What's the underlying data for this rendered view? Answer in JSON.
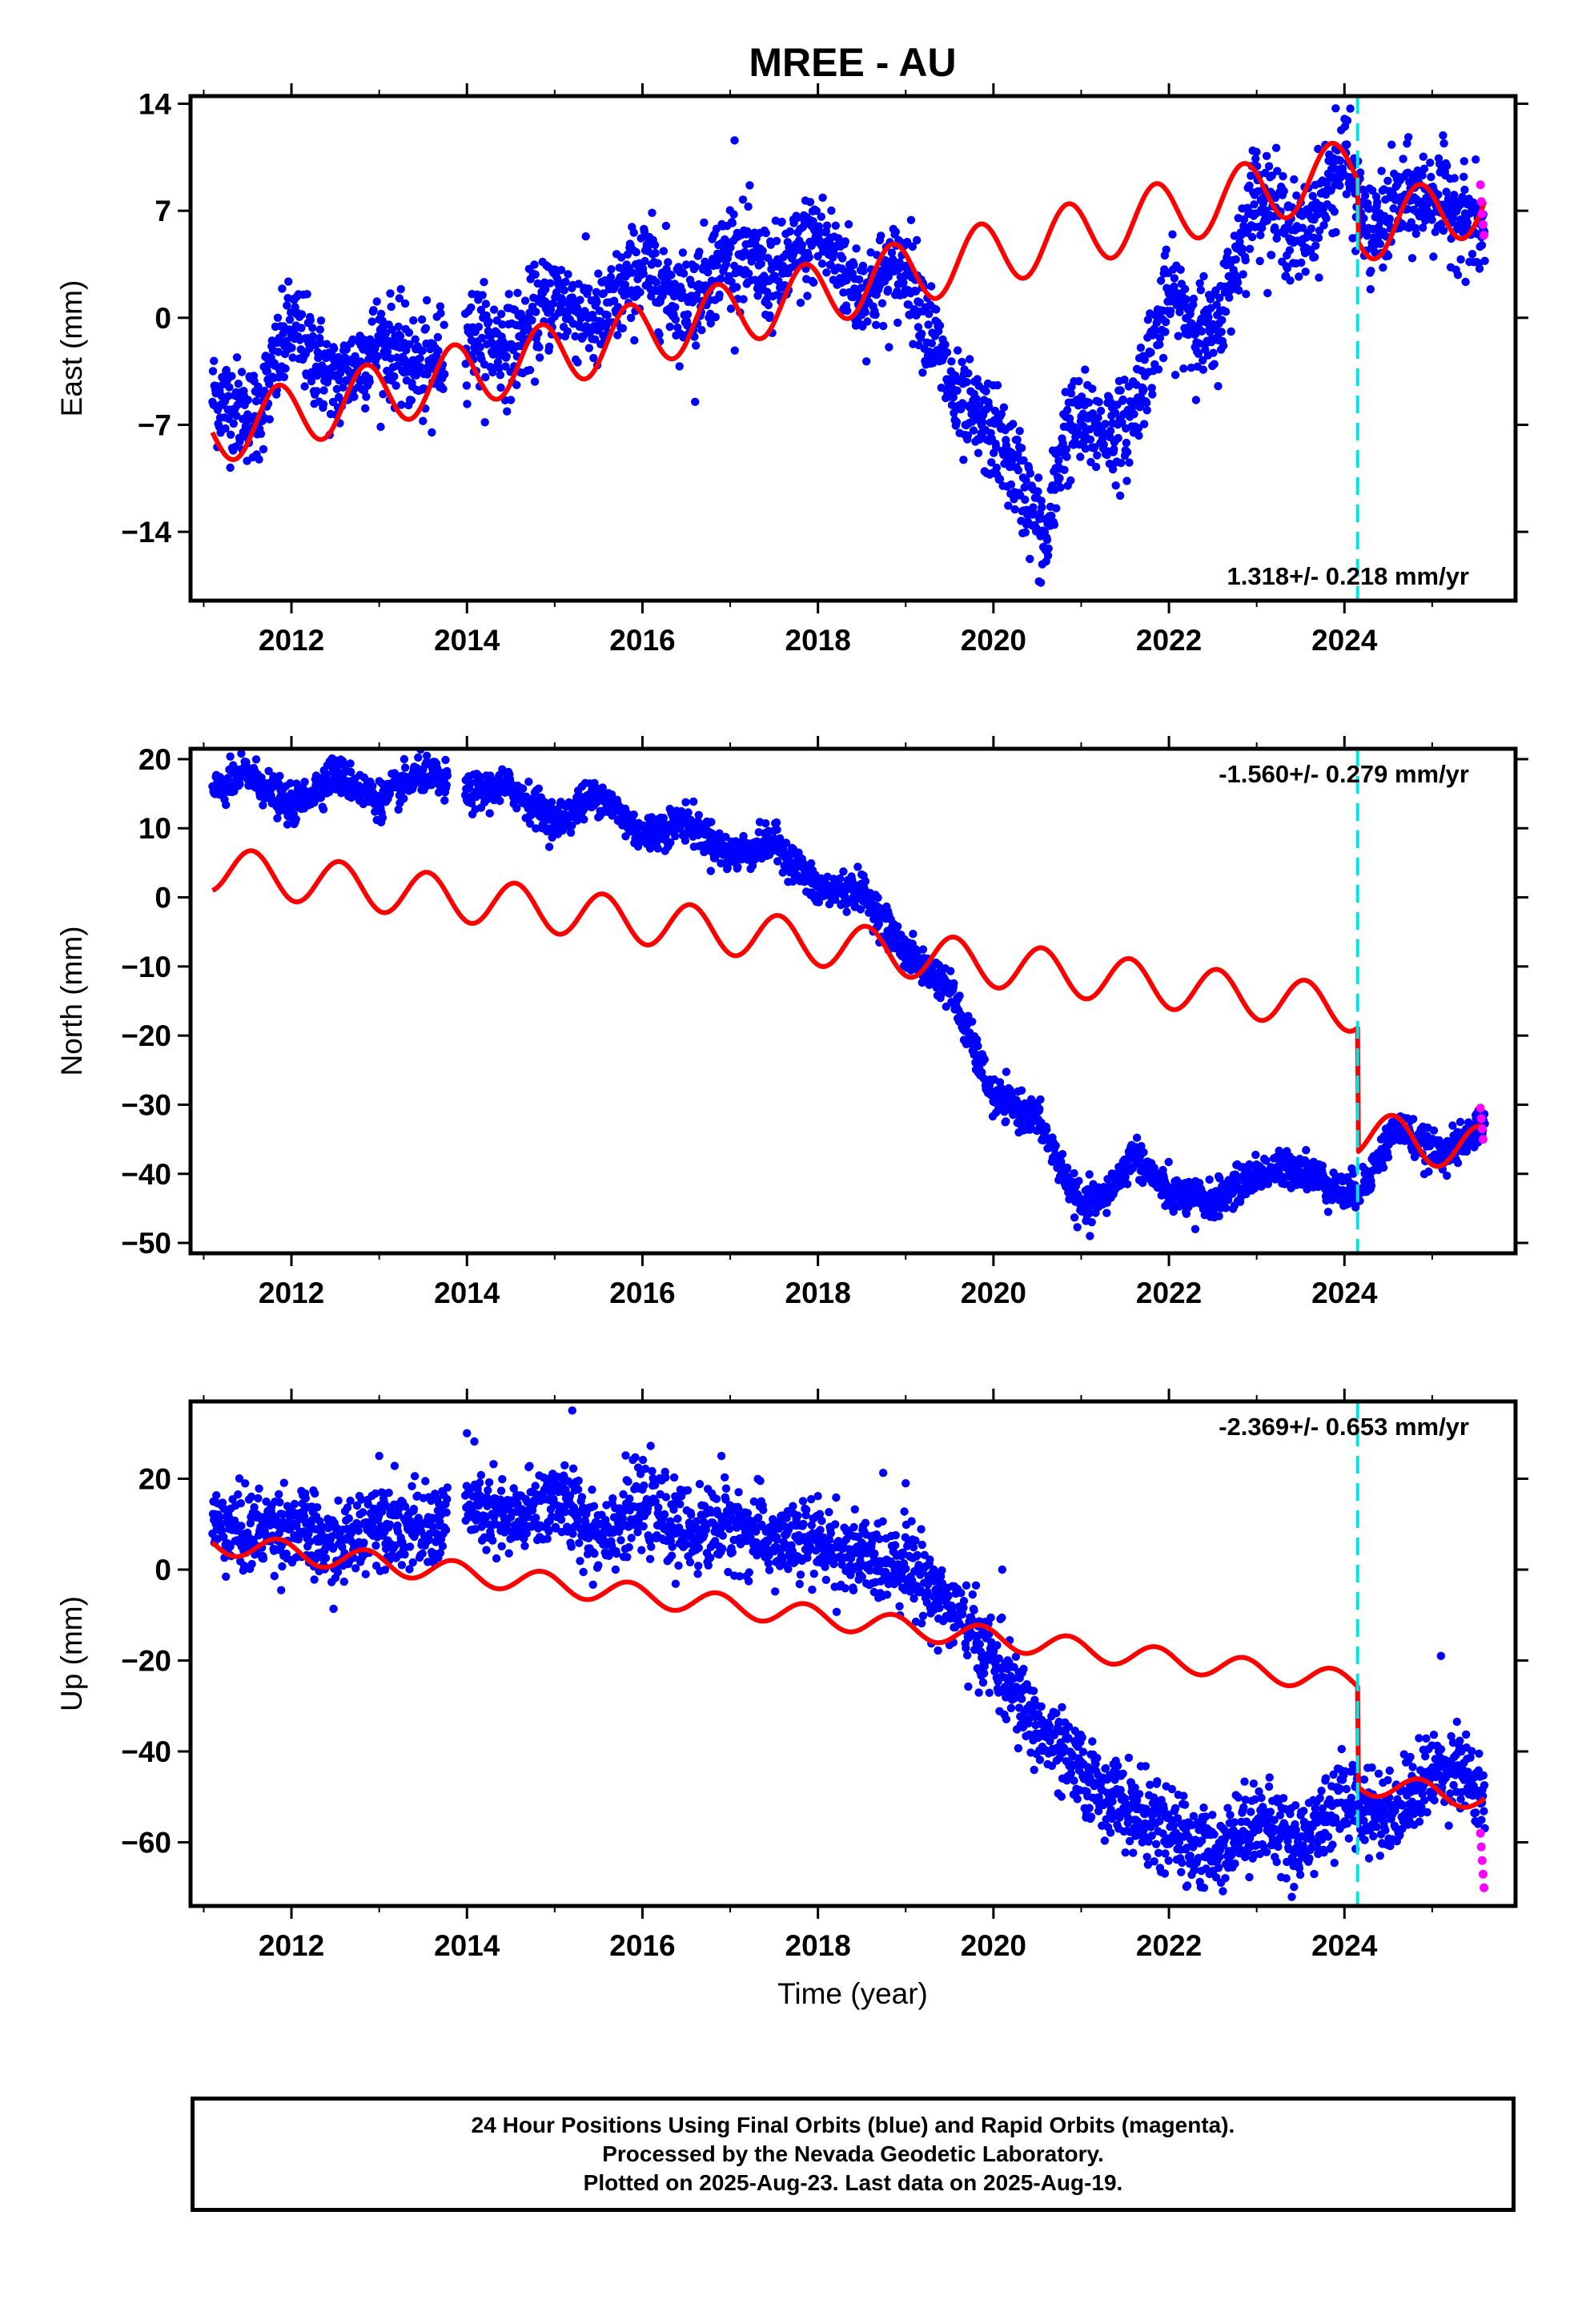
{
  "title": "MREE - AU",
  "xlabel": "Time (year)",
  "caption": [
    "24 Hour Positions Using Final Orbits (blue) and Rapid Orbits (magenta).",
    "Processed by the Nevada Geodetic Laboratory.",
    "Plotted on 2025-Aug-23. Last data on 2025-Aug-19."
  ],
  "colors": {
    "final_orbits": "#0000ff",
    "rapid_orbits": "#ff00ff",
    "model": "#ff0000",
    "event": "#00e5e5"
  },
  "chart_data": [
    {
      "type": "scatter",
      "ylabel": "East (mm)",
      "xlim": [
        2010.85,
        2025.95
      ],
      "ylim": [
        -18.5,
        14.5
      ],
      "xticks": [
        "2012",
        "2014",
        "2016",
        "2018",
        "2020",
        "2022",
        "2024"
      ],
      "yticks": [
        "14",
        "7",
        "0",
        "-7",
        "-14"
      ],
      "rate_label": "1.318+/- 0.218 mm/yr",
      "rate_position": "bottom-right",
      "event_line_x": 2024.15,
      "final_trend_x": [
        2011.1,
        2011.6,
        2012.0,
        2012.5,
        2013.0,
        2013.5,
        2014.0,
        2014.5,
        2015.0,
        2015.5,
        2016.0,
        2016.5,
        2017.0,
        2017.5,
        2018.0,
        2018.5,
        2019.0,
        2019.3,
        2019.6,
        2020.0,
        2020.3,
        2020.6,
        2020.8,
        2021.0,
        2021.5,
        2022.0,
        2022.5,
        2023.0,
        2023.5,
        2024.0,
        2024.3,
        2024.6,
        2025.0,
        2025.3,
        2025.6
      ],
      "final_trend_y": [
        -5.0,
        -6.5,
        -0.5,
        -4.5,
        -1.5,
        -3.5,
        -1.0,
        -2.0,
        1.5,
        -0.5,
        3.5,
        1.0,
        4.5,
        2.5,
        5.5,
        1.5,
        3.5,
        -1.0,
        -6.0,
        -7.5,
        -10.5,
        -15.0,
        -7.5,
        -7.0,
        -7.5,
        1.5,
        -1.5,
        8.5,
        5.0,
        10.5,
        5.0,
        7.5,
        8.0,
        7.0,
        5.0
      ],
      "final_scatter": 1.6,
      "final_outliers": [
        {
          "x": 2017.05,
          "y": 11.6
        },
        {
          "x": 2023.9,
          "y": 13.7
        },
        {
          "x": 2013.6,
          "y": -7.5
        },
        {
          "x": 2016.6,
          "y": -5.5
        }
      ],
      "rapid": [
        {
          "x": 2025.55,
          "y": 8.7
        },
        {
          "x": 2025.56,
          "y": 7.6
        },
        {
          "x": 2025.57,
          "y": 6.8
        },
        {
          "x": 2025.58,
          "y": 6.1
        },
        {
          "x": 2025.59,
          "y": 5.4
        }
      ],
      "model": {
        "intercept_year": 2011.1,
        "intercept": -7.5,
        "rate": 1.318,
        "amplitude": 2.1,
        "phase_year": 2011.85,
        "jump_year": 2024.15,
        "jump": -4.0
      }
    },
    {
      "type": "scatter",
      "ylabel": "North (mm)",
      "xlim": [
        2010.85,
        2025.95
      ],
      "ylim": [
        -51.5,
        21.5
      ],
      "xticks": [
        "2012",
        "2014",
        "2016",
        "2018",
        "2020",
        "2022",
        "2024"
      ],
      "yticks": [
        "20",
        "10",
        "0",
        "-10",
        "-20",
        "-30",
        "-40",
        "-50"
      ],
      "rate_label": "-1.560+/- 0.279 mm/yr",
      "rate_position": "top-right",
      "event_line_x": 2024.15,
      "final_trend_x": [
        2011.1,
        2011.5,
        2012.0,
        2012.5,
        2013.0,
        2013.5,
        2014.0,
        2014.5,
        2015.0,
        2015.5,
        2016.0,
        2016.5,
        2017.0,
        2017.5,
        2018.0,
        2018.5,
        2019.0,
        2019.5,
        2020.0,
        2020.5,
        2021.0,
        2021.3,
        2021.6,
        2022.0,
        2022.5,
        2023.0,
        2023.5,
        2024.0,
        2024.2,
        2024.6,
        2025.0,
        2025.3,
        2025.6
      ],
      "final_trend_y": [
        15.0,
        18.0,
        13.0,
        18.0,
        14.0,
        18.0,
        15.0,
        16.0,
        11.0,
        15.0,
        9.0,
        11.0,
        6.0,
        8.0,
        1.0,
        1.0,
        -8.0,
        -13.0,
        -29.0,
        -32.0,
        -45.0,
        -43.0,
        -37.0,
        -43.0,
        -44.0,
        -40.0,
        -39.0,
        -43.0,
        -42.0,
        -33.0,
        -37.0,
        -36.0,
        -32.0
      ],
      "final_scatter": 1.3,
      "final_outliers": [
        {
          "x": 2021.1,
          "y": -49.0
        },
        {
          "x": 2022.3,
          "y": -48.0
        }
      ],
      "rapid": [
        {
          "x": 2025.55,
          "y": -30.5
        },
        {
          "x": 2025.56,
          "y": -32.0
        },
        {
          "x": 2025.57,
          "y": -33.5
        },
        {
          "x": 2025.58,
          "y": -35.0
        }
      ],
      "model": {
        "intercept_year": 2011.1,
        "intercept": 1.0,
        "rate": -1.56,
        "amplitude": 3.3,
        "phase_year": 2011.55,
        "jump_year": 2024.15,
        "jump": -18.0
      }
    },
    {
      "type": "scatter",
      "ylabel": "Up (mm)",
      "xlim": [
        2010.85,
        2025.95
      ],
      "ylim": [
        -74.0,
        37.0
      ],
      "xticks": [
        "2012",
        "2014",
        "2016",
        "2018",
        "2020",
        "2022",
        "2024"
      ],
      "yticks": [
        "20",
        "0",
        "-20",
        "-40",
        "-60"
      ],
      "rate_label": "-2.369+/- 0.653 mm/yr",
      "rate_position": "top-right",
      "event_line_x": 2024.15,
      "final_trend_x": [
        2011.1,
        2011.5,
        2012.0,
        2012.5,
        2013.0,
        2013.5,
        2014.0,
        2014.5,
        2015.0,
        2015.5,
        2016.0,
        2016.5,
        2017.0,
        2017.5,
        2018.0,
        2018.5,
        2019.0,
        2019.5,
        2020.0,
        2020.5,
        2021.0,
        2021.5,
        2022.0,
        2022.5,
        2023.0,
        2023.5,
        2024.0,
        2024.5,
        2025.0,
        2025.3,
        2025.6
      ],
      "final_trend_y": [
        10.0,
        8.0,
        10.0,
        4.0,
        12.0,
        8.0,
        14.0,
        10.0,
        16.0,
        8.0,
        14.0,
        8.0,
        10.0,
        6.0,
        6.0,
        2.0,
        2.0,
        -8.0,
        -20.0,
        -35.0,
        -45.0,
        -52.0,
        -58.0,
        -62.0,
        -55.0,
        -60.0,
        -50.0,
        -54.0,
        -45.0,
        -42.0,
        -52.0
      ],
      "final_scatter": 4.5,
      "final_outliers": [
        {
          "x": 2013.0,
          "y": 25.0
        },
        {
          "x": 2014.0,
          "y": 30.0
        },
        {
          "x": 2015.2,
          "y": 35.0
        },
        {
          "x": 2016.9,
          "y": 25.0
        },
        {
          "x": 2019.0,
          "y": 19.0
        },
        {
          "x": 2020.1,
          "y": 0.0
        },
        {
          "x": 2025.1,
          "y": -19.0
        },
        {
          "x": 2022.4,
          "y": -70.0
        },
        {
          "x": 2023.4,
          "y": -72.0
        }
      ],
      "rapid": [
        {
          "x": 2025.55,
          "y": -58.0
        },
        {
          "x": 2025.56,
          "y": -61.0
        },
        {
          "x": 2025.57,
          "y": -64.0
        },
        {
          "x": 2025.58,
          "y": -67.0
        },
        {
          "x": 2025.59,
          "y": -70.0
        }
      ],
      "model": {
        "intercept_year": 2011.1,
        "intercept": 6.0,
        "rate": -2.369,
        "amplitude": 2.5,
        "phase_year": 2011.85,
        "jump_year": 2024.15,
        "jump": -22.0
      }
    }
  ]
}
